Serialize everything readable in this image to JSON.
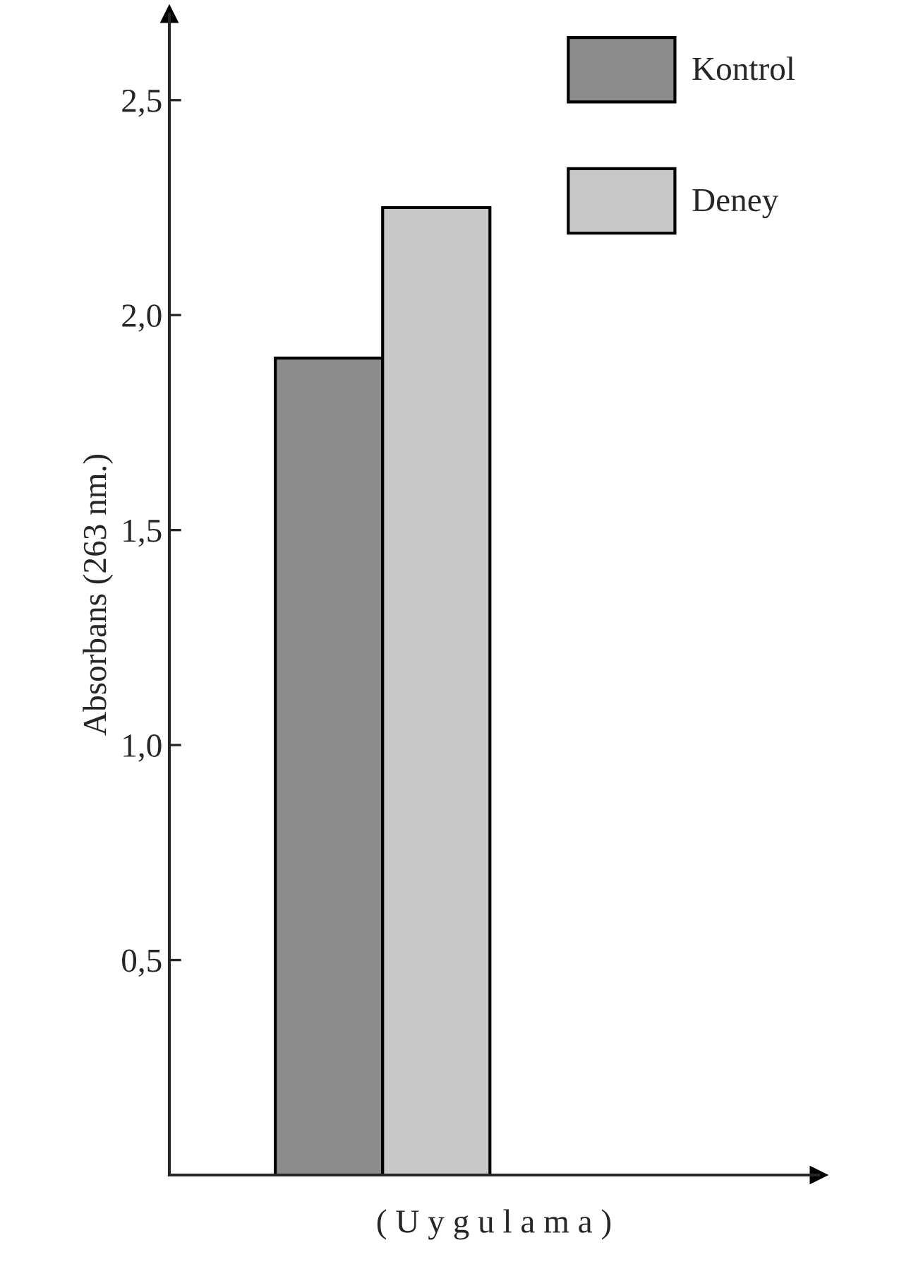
{
  "chart_data": {
    "type": "bar",
    "xlabel": "( U y g u l a m a )",
    "ylabel": "Absorbans (263 nm.)",
    "categories": [
      null
    ],
    "series": [
      {
        "name": "Kontrol",
        "color": "#8c8c8c",
        "values": [
          1.9
        ]
      },
      {
        "name": "Deney",
        "color": "#c8c8c8",
        "values": [
          2.25
        ]
      }
    ],
    "ylim": [
      0,
      2.7
    ],
    "yticks": [
      {
        "value": 0.5,
        "label": "0,5"
      },
      {
        "value": 1.0,
        "label": "1,0"
      },
      {
        "value": 1.5,
        "label": "1,5"
      },
      {
        "value": 2.0,
        "label": "2,0"
      },
      {
        "value": 2.5,
        "label": "2,5"
      }
    ],
    "legend": "top right",
    "grid": false
  }
}
